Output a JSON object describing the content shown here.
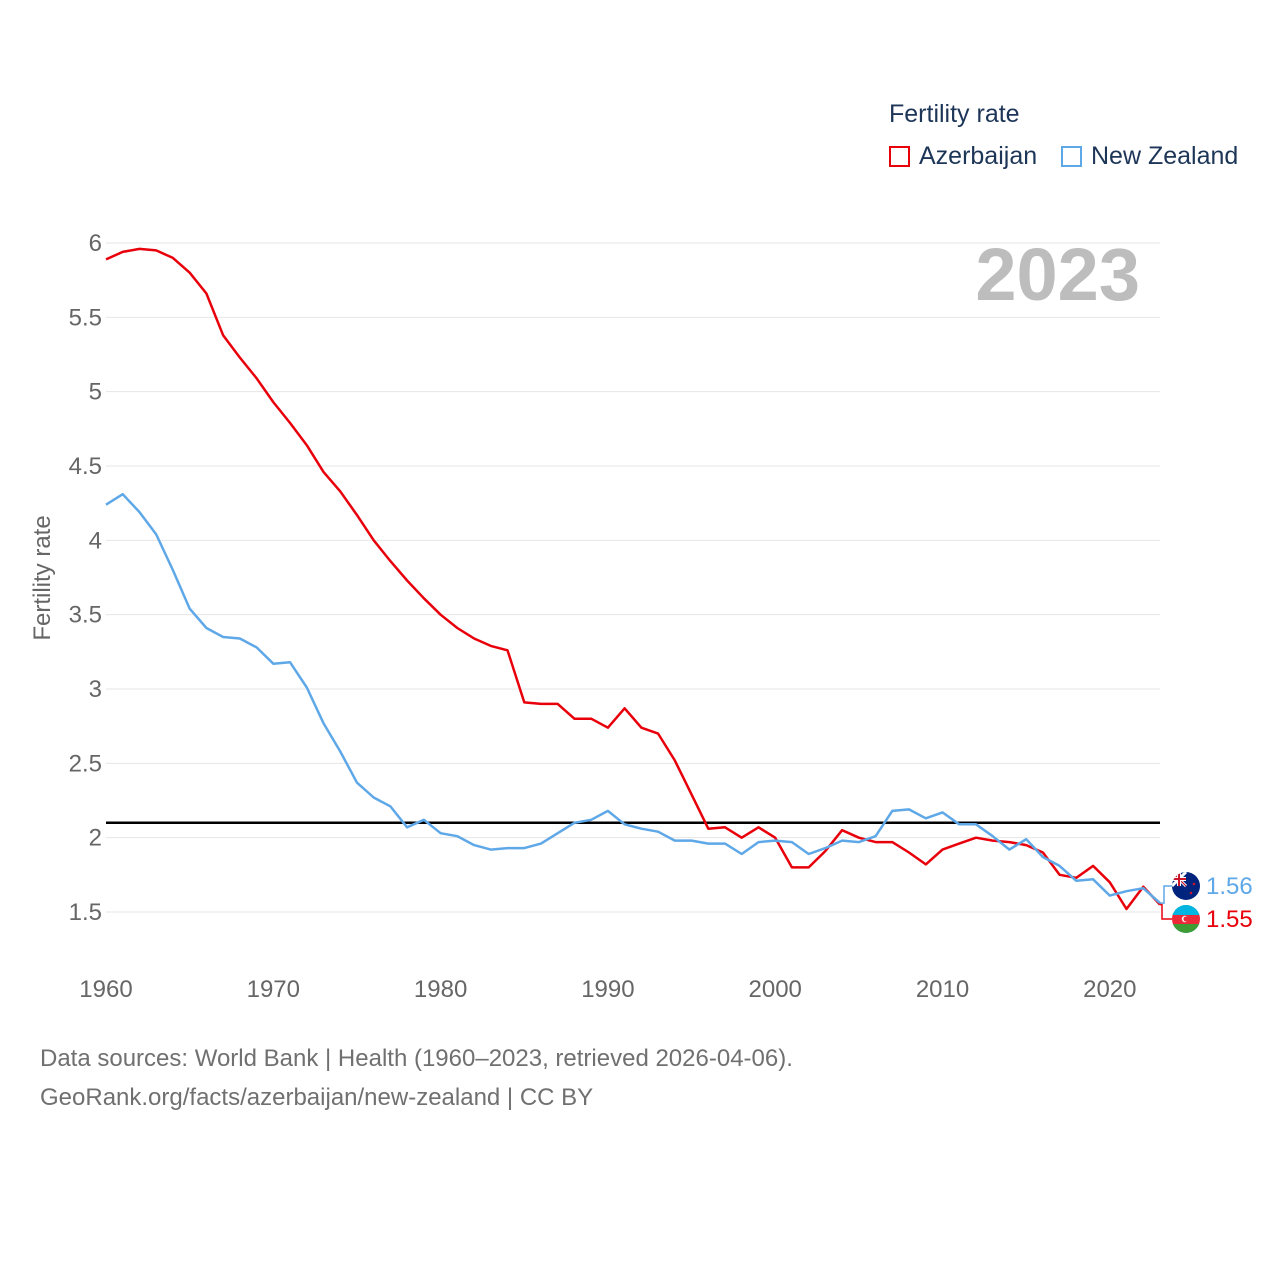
{
  "legend": {
    "title": "Fertility rate",
    "items": [
      {
        "label": "Azerbaijan",
        "color": "#e8000b"
      },
      {
        "label": "New Zealand",
        "color": "#5fa8e8"
      }
    ]
  },
  "year_label": "2023",
  "end_labels": {
    "new_zealand": "1.56",
    "azerbaijan": "1.55"
  },
  "footer": {
    "line1": "Data sources: World Bank | Health (1960–2023, retrieved 2026-04-06).",
    "line2": "GeoRank.org/facts/azerbaijan/new-zealand | CC BY"
  },
  "chart_data": {
    "type": "line",
    "title": "",
    "ylabel": "Fertility rate",
    "xlabel": "",
    "xlim": [
      1960,
      2023
    ],
    "ylim": [
      1.5,
      6
    ],
    "xticks": [
      "1960",
      "1970",
      "1980",
      "1990",
      "2000",
      "2010",
      "2020"
    ],
    "yticks": [
      "1.5",
      "2",
      "2.5",
      "3",
      "3.5",
      "4",
      "4.5",
      "5",
      "5.5",
      "6"
    ],
    "reference_line": 2.1,
    "x_start": 1960,
    "series": [
      {
        "name": "Azerbaijan",
        "color": "#e8000b",
        "values": [
          5.89,
          5.94,
          5.96,
          5.95,
          5.9,
          5.8,
          5.66,
          5.38,
          5.23,
          5.09,
          4.93,
          4.79,
          4.64,
          4.46,
          4.33,
          4.17,
          4.0,
          3.86,
          3.73,
          3.61,
          3.5,
          3.41,
          3.34,
          3.29,
          3.26,
          2.91,
          2.9,
          2.9,
          2.8,
          2.8,
          2.74,
          2.87,
          2.74,
          2.7,
          2.52,
          2.29,
          2.06,
          2.07,
          2.0,
          2.07,
          2.0,
          1.8,
          1.8,
          1.91,
          2.05,
          2.0,
          1.97,
          1.97,
          1.9,
          1.82,
          1.92,
          1.96,
          2.0,
          1.98,
          1.97,
          1.95,
          1.9,
          1.75,
          1.73,
          1.81,
          1.7,
          1.52,
          1.67,
          1.55
        ]
      },
      {
        "name": "New Zealand",
        "color": "#5fa8e8",
        "values": [
          4.24,
          4.31,
          4.19,
          4.04,
          3.8,
          3.54,
          3.41,
          3.35,
          3.34,
          3.28,
          3.17,
          3.18,
          3.01,
          2.77,
          2.58,
          2.37,
          2.27,
          2.21,
          2.07,
          2.12,
          2.03,
          2.01,
          1.95,
          1.92,
          1.93,
          1.93,
          1.96,
          2.03,
          2.1,
          2.12,
          2.18,
          2.09,
          2.06,
          2.04,
          1.98,
          1.98,
          1.96,
          1.96,
          1.89,
          1.97,
          1.98,
          1.97,
          1.89,
          1.93,
          1.98,
          1.97,
          2.01,
          2.18,
          2.19,
          2.13,
          2.17,
          2.09,
          2.09,
          2.01,
          1.92,
          1.99,
          1.87,
          1.81,
          1.71,
          1.72,
          1.61,
          1.64,
          1.66,
          1.56
        ]
      }
    ]
  }
}
